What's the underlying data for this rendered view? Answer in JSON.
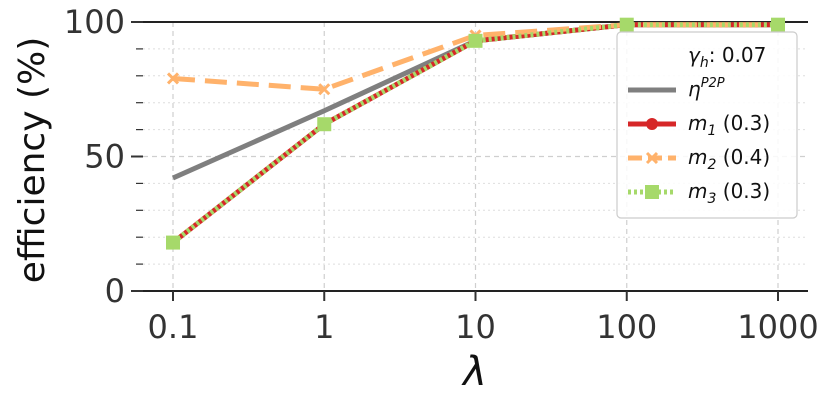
{
  "chart_data": {
    "type": "line",
    "x_scale": "log",
    "x": [
      0.1,
      1,
      10,
      100,
      1000
    ],
    "x_tick_labels": [
      "0.1",
      "1",
      "10",
      "100",
      "1000"
    ],
    "y_ticks": [
      0,
      50,
      100
    ],
    "y_tick_labels": [
      "0",
      "50",
      "100"
    ],
    "ylim": [
      0,
      100
    ],
    "xlabel": "λ",
    "ylabel": "efficiency (%)",
    "title": "",
    "grid": true,
    "legend_position": "right",
    "legend_title": {
      "symbol": "γ",
      "subscript": "h",
      "value": ": 0.07"
    },
    "series": [
      {
        "key": "eta",
        "symbol": "η",
        "superscript": "P2P",
        "suffix": "",
        "color": "#7f7f7f",
        "style": "solid",
        "marker": "none",
        "values": [
          42,
          67,
          93,
          99,
          99
        ]
      },
      {
        "key": "m1",
        "symbol": "m",
        "subscript": "1",
        "suffix": " (0.3)",
        "color": "#d62728",
        "style": "solid",
        "marker": "circle",
        "values": [
          18,
          62,
          93,
          99,
          99
        ]
      },
      {
        "key": "m2",
        "symbol": "m",
        "subscript": "2",
        "suffix": " (0.4)",
        "color": "#ffb26b",
        "style": "dashed",
        "marker": "x",
        "values": [
          79,
          75,
          95,
          99,
          99
        ]
      },
      {
        "key": "m3",
        "symbol": "m",
        "subscript": "3",
        "suffix": " (0.3)",
        "color": "#a6d96a",
        "style": "dotted",
        "marker": "square",
        "values": [
          18,
          62,
          93,
          99,
          99
        ]
      }
    ]
  }
}
